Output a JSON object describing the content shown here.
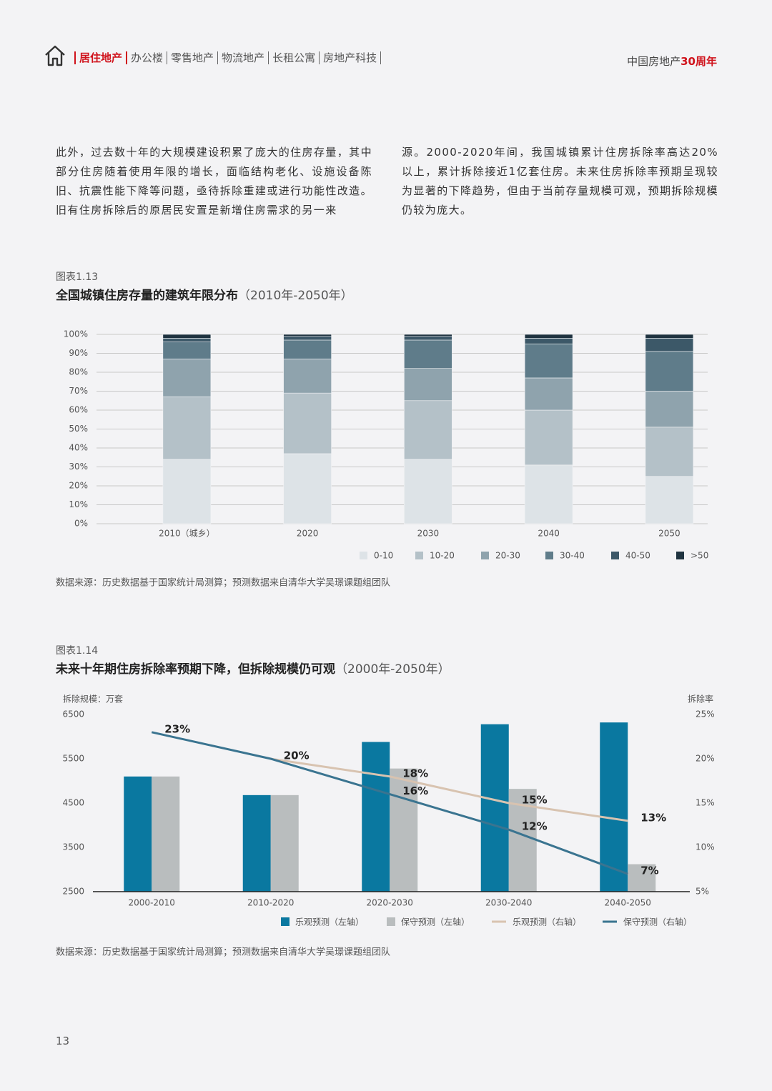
{
  "header": {
    "nav": [
      "居住地产",
      "办公楼",
      "零售地产",
      "物流地产",
      "长租公寓",
      "房地产科技"
    ],
    "brand": "中国房地产",
    "brand_highlight": "30周年"
  },
  "body": {
    "columns": [
      "此外，过去数十年的大规模建设积累了庞大的住房存量，其中部分住房随着使用年限的增长，面临结构老化、设施设备陈旧、抗震性能下降等问题，亟待拆除重建或进行功能性改造。旧有住房拆除后的原居民安置是新增住房需求的另一来",
      "源。2000-2020年间，我国城镇累计住房拆除率高达20%以上，累计拆除接近1亿套住房。未来住房拆除率预期呈现较为显著的下降趋势，但由于当前存量规模可观，预期拆除规模仍较为庞大。"
    ]
  },
  "chart_data": [
    {
      "type": "bar",
      "stacked": true,
      "label": "图表1.13",
      "title": "全国城镇住房存量的建筑年限分布",
      "subtitle": "（2010年-2050年）",
      "categories": [
        "2010（城乡）",
        "2020",
        "2030",
        "2040",
        "2050"
      ],
      "series": [
        {
          "name": "0-10",
          "color": "#dde3e7",
          "values": [
            34,
            37,
            34,
            31,
            25
          ]
        },
        {
          "name": "10-20",
          "color": "#b4c1c8",
          "values": [
            33,
            32,
            31,
            29,
            26
          ]
        },
        {
          "name": "20-30",
          "color": "#8fa3ad",
          "values": [
            20,
            18,
            17,
            17,
            19
          ]
        },
        {
          "name": "30-40",
          "color": "#5f7c8a",
          "values": [
            9,
            10,
            15,
            18,
            21
          ]
        },
        {
          "name": "40-50",
          "color": "#3c5868",
          "values": [
            2,
            2,
            2,
            3,
            7
          ]
        },
        {
          "name": ">50",
          "color": "#1f3340",
          "values": [
            2,
            1,
            1,
            2,
            2
          ]
        }
      ],
      "ylim": [
        0,
        100
      ],
      "yticks": [
        {
          "value": 0,
          "label": "0%"
        },
        {
          "value": 10,
          "label": "10%"
        },
        {
          "value": 20,
          "label": "20%"
        },
        {
          "value": 30,
          "label": "30%"
        },
        {
          "value": 40,
          "label": "40%"
        },
        {
          "value": 50,
          "label": "50%"
        },
        {
          "value": 60,
          "label": "60%"
        },
        {
          "value": 70,
          "label": "70%"
        },
        {
          "value": 80,
          "label": "80%"
        },
        {
          "value": 90,
          "label": "90%"
        },
        {
          "value": 100,
          "label": "100%"
        }
      ],
      "grid": true,
      "legend": "bottom",
      "source": "数据来源：历史数据基于国家统计局测算；预测数据来自清华大学吴璟课题组团队"
    },
    {
      "type": "combo",
      "label": "图表1.14",
      "title": "未来十年期住房拆除率预期下降，但拆除规模仍可观",
      "subtitle": "（2000年-2050年）",
      "y_label": "拆除规模：万套",
      "y2_label": "拆除率",
      "categories": [
        "2000-2010",
        "2010-2020",
        "2020-2030",
        "2030-2040",
        "2040-2050"
      ],
      "series": [
        {
          "name": "乐观预测（左轴）",
          "color": "#0a78a0",
          "values": [
            5100,
            4680,
            5880,
            6280,
            6320
          ]
        },
        {
          "name": "保守预测（左轴）",
          "color": "#b9bdbe",
          "values": [
            5100,
            4680,
            5280,
            4820,
            3120
          ]
        },
        {
          "name": "乐观预测（右轴）",
          "color": "#d8c3b0",
          "axis": "y2",
          "values": [
            null,
            20,
            18,
            15,
            13
          ],
          "value_labels": [
            null,
            null,
            "18%",
            "15%",
            "13%"
          ]
        },
        {
          "name": "保守预测（右轴）",
          "color": "#3a7490",
          "axis": "y2",
          "values": [
            23,
            20,
            16,
            12,
            7
          ],
          "value_labels": [
            "23%",
            "20%",
            "16%",
            "12%",
            "7%"
          ]
        }
      ],
      "ylim": [
        2500,
        6500
      ],
      "yticks": [
        2500,
        3500,
        4500,
        5500,
        6500
      ],
      "y2lim": [
        5,
        25
      ],
      "y2ticks": [
        {
          "value": 5,
          "label": "5%"
        },
        {
          "value": 10,
          "label": "10%"
        },
        {
          "value": 15,
          "label": "15%"
        },
        {
          "value": 20,
          "label": "20%"
        },
        {
          "value": 25,
          "label": "25%"
        }
      ],
      "grid": false,
      "legend": "bottom",
      "source": "数据来源：历史数据基于国家统计局测算；预测数据来自清华大学吴璟课题组团队"
    }
  ],
  "page_number": "13"
}
